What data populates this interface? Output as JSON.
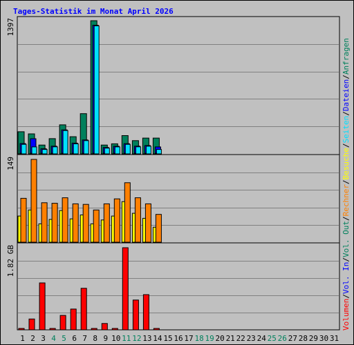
{
  "title": "Tages-Statistik im Monat April 2026",
  "colors": {
    "background": "#c0c0c0",
    "grid": "#808080",
    "title": "#0000ff",
    "anfragen": "#00805c",
    "dateien": "#0000ff",
    "seiten": "#00e0ff",
    "besuche": "#ffff00",
    "rechner": "#ff8000",
    "vol_out": "#00805c",
    "vol_in": "#0000ff",
    "volumen": "#ff0000",
    "weekend_label": "#00805c",
    "weekday_label": "#000000"
  },
  "chart_data": [
    {
      "type": "bar",
      "panel": "top",
      "ymax_label": "1397",
      "ylim": [
        0,
        1397
      ],
      "legend": [
        "Anfragen",
        "Dateien",
        "Seiten"
      ],
      "categories": [
        "1",
        "2",
        "3",
        "4",
        "5",
        "6",
        "7",
        "8",
        "9",
        "10",
        "11",
        "12",
        "13",
        "14",
        "15",
        "16",
        "17",
        "18",
        "19",
        "20",
        "21",
        "22",
        "23",
        "24",
        "25",
        "26",
        "27",
        "28",
        "29",
        "30",
        "31"
      ],
      "series": [
        {
          "name": "Anfragen",
          "values": [
            232,
            210,
            93,
            160,
            305,
            180,
            422,
            1397,
            93,
            106,
            192,
            139,
            166,
            166,
            0,
            0,
            0,
            0,
            0,
            0,
            0,
            0,
            0,
            0,
            0,
            0,
            0,
            0,
            0,
            0,
            0
          ]
        },
        {
          "name": "Dateien",
          "values": [
            101,
            152,
            46,
            74,
            245,
            106,
            139,
            1343,
            60,
            73,
            100,
            74,
            80,
            66,
            0,
            0,
            0,
            0,
            0,
            0,
            0,
            0,
            0,
            0,
            0,
            0,
            0,
            0,
            0,
            0,
            0
          ]
        },
        {
          "name": "Seiten",
          "values": [
            100,
            73,
            46,
            74,
            245,
            106,
            139,
            1343,
            60,
            73,
            100,
            74,
            80,
            46,
            0,
            0,
            0,
            0,
            0,
            0,
            0,
            0,
            0,
            0,
            0,
            0,
            0,
            0,
            0,
            0,
            0
          ]
        }
      ]
    },
    {
      "type": "bar",
      "panel": "middle",
      "ymax_label": "149",
      "ylim": [
        0,
        149
      ],
      "legend": [
        "Besuche",
        "Rechner"
      ],
      "categories": [
        "1",
        "2",
        "3",
        "4",
        "5",
        "6",
        "7",
        "8",
        "9",
        "10",
        "11",
        "12",
        "13",
        "14",
        "15",
        "16",
        "17",
        "18",
        "19",
        "20",
        "21",
        "22",
        "23",
        "24",
        "25",
        "26",
        "27",
        "28",
        "29",
        "30",
        "31"
      ],
      "series": [
        {
          "name": "Besuche",
          "values": [
            47,
            58,
            33,
            41,
            57,
            42,
            49,
            33,
            40,
            47,
            73,
            52,
            43,
            27,
            0,
            0,
            0,
            0,
            0,
            0,
            0,
            0,
            0,
            0,
            0,
            0,
            0,
            0,
            0,
            0,
            0
          ]
        },
        {
          "name": "Rechner",
          "values": [
            79,
            149,
            71,
            70,
            80,
            69,
            68,
            58,
            69,
            78,
            107,
            80,
            69,
            50,
            0,
            0,
            0,
            0,
            0,
            0,
            0,
            0,
            0,
            0,
            0,
            0,
            0,
            0,
            0,
            0,
            0
          ]
        }
      ]
    },
    {
      "type": "bar",
      "panel": "bottom",
      "ymax_label": "1.82 GB",
      "ylim": [
        0,
        1.82
      ],
      "yunit": "GB",
      "legend": [
        "Volumen",
        "Vol. In",
        "Vol. Out"
      ],
      "categories": [
        "1",
        "2",
        "3",
        "4",
        "5",
        "6",
        "7",
        "8",
        "9",
        "10",
        "11",
        "12",
        "13",
        "14",
        "15",
        "16",
        "17",
        "18",
        "19",
        "20",
        "21",
        "22",
        "23",
        "24",
        "25",
        "26",
        "27",
        "28",
        "29",
        "30",
        "31"
      ],
      "series": [
        {
          "name": "Volumen",
          "values": [
            0.02,
            0.24,
            1.04,
            0.02,
            0.32,
            0.46,
            0.92,
            0.02,
            0.14,
            0.02,
            1.82,
            0.66,
            0.78,
            0.02,
            0,
            0,
            0,
            0,
            0,
            0,
            0,
            0,
            0,
            0,
            0,
            0,
            0,
            0,
            0,
            0,
            0
          ]
        }
      ]
    }
  ],
  "x_labels": [
    {
      "text": "1",
      "weekend": false
    },
    {
      "text": "2",
      "weekend": false
    },
    {
      "text": "3",
      "weekend": false
    },
    {
      "text": "4",
      "weekend": true
    },
    {
      "text": "5",
      "weekend": true
    },
    {
      "text": "6",
      "weekend": false
    },
    {
      "text": "7",
      "weekend": false
    },
    {
      "text": "8",
      "weekend": false
    },
    {
      "text": "9",
      "weekend": false
    },
    {
      "text": "10",
      "weekend": false
    },
    {
      "text": "11",
      "weekend": true
    },
    {
      "text": "12",
      "weekend": true
    },
    {
      "text": "13",
      "weekend": false
    },
    {
      "text": "14",
      "weekend": false
    },
    {
      "text": "15",
      "weekend": false
    },
    {
      "text": "16",
      "weekend": false
    },
    {
      "text": "17",
      "weekend": false
    },
    {
      "text": "18",
      "weekend": true
    },
    {
      "text": "19",
      "weekend": true
    },
    {
      "text": "20",
      "weekend": false
    },
    {
      "text": "21",
      "weekend": false
    },
    {
      "text": "22",
      "weekend": false
    },
    {
      "text": "23",
      "weekend": false
    },
    {
      "text": "24",
      "weekend": false
    },
    {
      "text": "25",
      "weekend": true
    },
    {
      "text": "26",
      "weekend": true
    },
    {
      "text": "27",
      "weekend": false
    },
    {
      "text": "28",
      "weekend": false
    },
    {
      "text": "29",
      "weekend": false
    },
    {
      "text": "30",
      "weekend": false
    },
    {
      "text": "31",
      "weekend": false
    }
  ],
  "right_legend": [
    {
      "text": "Volumen",
      "color": "#ff0000"
    },
    {
      "text": "/",
      "color": "#000000"
    },
    {
      "text": "Vol. In",
      "color": "#0000ff"
    },
    {
      "text": "/",
      "color": "#000000"
    },
    {
      "text": "Vol. Out",
      "color": "#00805c"
    },
    {
      "text": "/",
      "color": "#000000"
    },
    {
      "text": "Rechner",
      "color": "#ff8000"
    },
    {
      "text": "/",
      "color": "#000000"
    },
    {
      "text": "Besuche",
      "color": "#ffff00"
    },
    {
      "text": "/",
      "color": "#000000"
    },
    {
      "text": "Seiten",
      "color": "#00e0ff"
    },
    {
      "text": "/",
      "color": "#000000"
    },
    {
      "text": "Dateien",
      "color": "#0000ff"
    },
    {
      "text": "/",
      "color": "#000000"
    },
    {
      "text": "Anfragen",
      "color": "#00805c"
    }
  ]
}
